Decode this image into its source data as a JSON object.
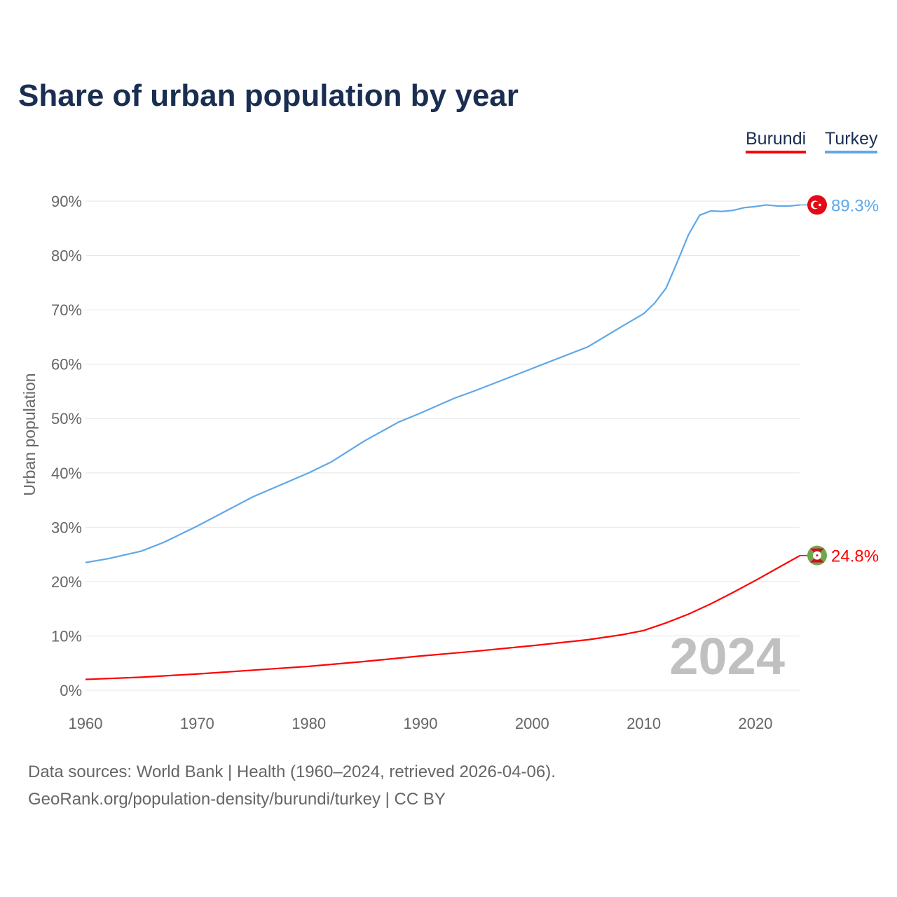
{
  "chart_data": {
    "type": "line",
    "title": "Share of urban population by year",
    "ylabel": "Urban population",
    "xlabel": "",
    "ylim": [
      0,
      90
    ],
    "xlim": [
      1960,
      2024
    ],
    "yticks": [
      "0%",
      "10%",
      "20%",
      "30%",
      "40%",
      "50%",
      "60%",
      "70%",
      "80%",
      "90%"
    ],
    "xticks": [
      "1960",
      "1970",
      "1980",
      "1990",
      "2000",
      "2010",
      "2020"
    ],
    "grid": true,
    "legend_position": "top-right",
    "year_label": "2024",
    "series": [
      {
        "name": "Burundi",
        "color": "#ff0000",
        "end_label": "24.8%",
        "x": [
          1960,
          1965,
          1970,
          1975,
          1980,
          1985,
          1990,
          1995,
          2000,
          2005,
          2008,
          2010,
          2012,
          2014,
          2016,
          2018,
          2020,
          2022,
          2024
        ],
        "y": [
          2.0,
          2.4,
          3.0,
          3.7,
          4.4,
          5.3,
          6.3,
          7.2,
          8.2,
          9.3,
          10.2,
          11.0,
          12.4,
          14.0,
          15.9,
          18.0,
          20.2,
          22.5,
          24.8
        ]
      },
      {
        "name": "Turkey",
        "color": "#5fa8e8",
        "end_label": "89.3%",
        "x": [
          1960,
          1962,
          1965,
          1967,
          1970,
          1975,
          1980,
          1982,
          1985,
          1988,
          1990,
          1993,
          1995,
          2000,
          2005,
          2008,
          2010,
          2011,
          2012,
          2013,
          2014,
          2015,
          2016,
          2017,
          2018,
          2019,
          2020,
          2021,
          2022,
          2023,
          2024
        ],
        "y": [
          23.5,
          24.2,
          25.6,
          27.2,
          30.2,
          35.6,
          40.0,
          42.0,
          45.9,
          49.3,
          51.0,
          53.7,
          55.2,
          59.2,
          63.2,
          66.9,
          69.3,
          71.3,
          74.0,
          78.8,
          83.8,
          87.4,
          88.2,
          88.1,
          88.3,
          88.8,
          89.0,
          89.3,
          89.1,
          89.1,
          89.3
        ]
      }
    ]
  },
  "sources": {
    "line1": "Data sources: World Bank | Health (1960–2024, retrieved 2026-04-06).",
    "line2": "GeoRank.org/population-density/burundi/turkey | CC BY"
  }
}
